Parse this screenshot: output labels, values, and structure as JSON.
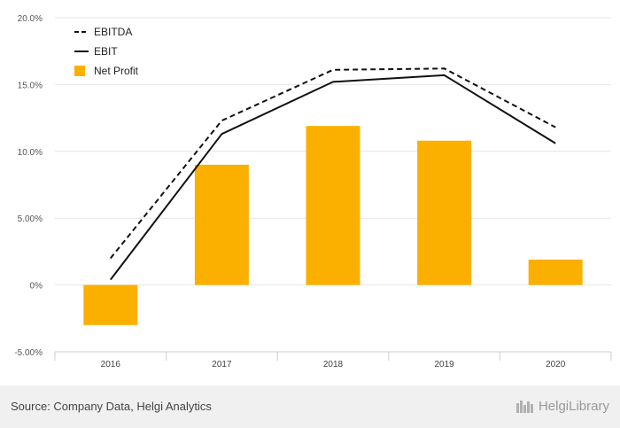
{
  "chart_data": {
    "type": "bar",
    "categories": [
      "2016",
      "2017",
      "2018",
      "2019",
      "2020"
    ],
    "series": [
      {
        "name": "EBITDA",
        "kind": "line",
        "style": "dashed",
        "color": "#111111",
        "values": [
          2.0,
          12.3,
          16.1,
          16.2,
          11.8
        ]
      },
      {
        "name": "EBIT",
        "kind": "line",
        "style": "solid",
        "color": "#111111",
        "values": [
          0.4,
          11.3,
          15.2,
          15.7,
          10.6
        ]
      },
      {
        "name": "Net Profit",
        "kind": "bar",
        "color": "#FBB000",
        "values": [
          -3.0,
          9.0,
          11.9,
          10.8,
          1.9
        ]
      }
    ],
    "y_ticks": [
      "-5.00%",
      "0%",
      "5.00%",
      "10.0%",
      "15.0%",
      "20.0%"
    ],
    "ylim": [
      -5,
      20
    ],
    "grid": true,
    "legend_position": "top-left"
  },
  "footer": {
    "source": "Source: Company Data, Helgi Analytics",
    "brand": "HelgiLibrary"
  }
}
